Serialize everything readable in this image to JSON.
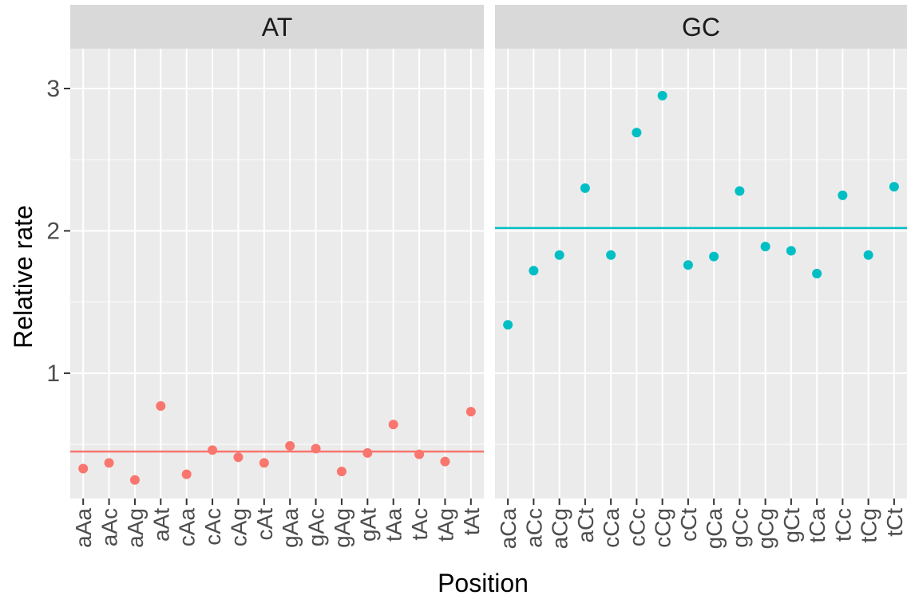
{
  "chart_data": {
    "type": "scatter",
    "xlabel": "Position",
    "ylabel": "Relative rate",
    "ylim": [
      0.12,
      3.28
    ],
    "yticks": [
      1,
      2,
      3
    ],
    "grid": true,
    "facets": [
      {
        "label": "AT",
        "color": "#F8766D",
        "categories": [
          "aAa",
          "aAc",
          "aAg",
          "aAt",
          "cAa",
          "cAc",
          "cAg",
          "cAt",
          "gAa",
          "gAc",
          "gAg",
          "gAt",
          "tAa",
          "tAc",
          "tAg",
          "tAt"
        ],
        "values": [
          0.33,
          0.37,
          0.25,
          0.77,
          0.29,
          0.46,
          0.41,
          0.37,
          0.49,
          0.47,
          0.31,
          0.44,
          0.64,
          0.43,
          0.38,
          0.73
        ],
        "hline": 0.45
      },
      {
        "label": "GC",
        "color": "#00BFC4",
        "categories": [
          "aCa",
          "aCc",
          "aCg",
          "aCt",
          "cCa",
          "cCc",
          "cCg",
          "cCt",
          "gCa",
          "gCc",
          "gCg",
          "gCt",
          "tCa",
          "tCc",
          "tCg",
          "tCt"
        ],
        "values": [
          1.34,
          1.72,
          1.83,
          2.3,
          1.83,
          2.69,
          2.95,
          1.76,
          1.82,
          2.28,
          1.89,
          1.86,
          1.7,
          2.25,
          1.83,
          2.31
        ],
        "hline": 2.02
      }
    ]
  }
}
